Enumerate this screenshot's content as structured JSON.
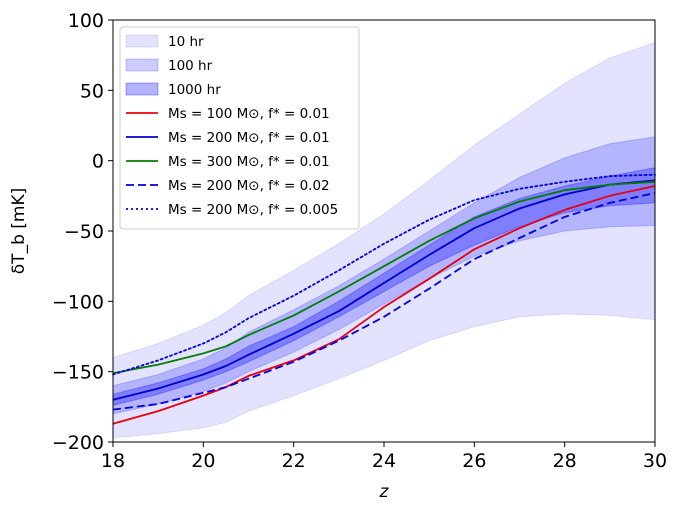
{
  "chart_data": {
    "type": "line",
    "title": "",
    "xlabel": "z",
    "ylabel": "δT_b [mK]",
    "xlim": [
      18,
      30
    ],
    "ylim": [
      -200,
      100
    ],
    "xticks": [
      18,
      20,
      22,
      24,
      26,
      28,
      30
    ],
    "xtick_labels": [
      "18",
      "20",
      "22",
      "24",
      "26",
      "28",
      "30"
    ],
    "yticks": [
      -200,
      -150,
      -100,
      -50,
      0,
      50,
      100
    ],
    "ytick_labels": [
      "−200",
      "−150",
      "−100",
      "−50",
      "0",
      "50",
      "100"
    ],
    "x": [
      18,
      19,
      20,
      20.5,
      21,
      22,
      23,
      24,
      25,
      26,
      27,
      28,
      29,
      30
    ],
    "bands": [
      {
        "name": "10 hr",
        "color": "#0000ff",
        "opacity": 0.11,
        "lower": [
          -197,
          -194,
          -190,
          -186,
          -178,
          -167,
          -155,
          -142,
          -128,
          -118,
          -111,
          -109,
          -110,
          -113
        ],
        "upper": [
          -140,
          -130,
          -117,
          -108,
          -96,
          -78,
          -59,
          -38,
          -14,
          11,
          33,
          55,
          73,
          84
        ]
      },
      {
        "name": "100 hr",
        "color": "#0000ff",
        "opacity": 0.2,
        "lower": [
          -180,
          -173,
          -164,
          -158,
          -150,
          -136,
          -120,
          -102,
          -84,
          -68,
          -57,
          -50,
          -47,
          -46
        ],
        "upper": [
          -160,
          -152,
          -141,
          -133,
          -122,
          -106,
          -89,
          -70,
          -50,
          -30,
          -12,
          2,
          12,
          17
        ]
      },
      {
        "name": "1000 hr",
        "color": "#0000ff",
        "opacity": 0.3,
        "lower": [
          -174,
          -166,
          -156,
          -150,
          -143,
          -128,
          -111,
          -93,
          -75,
          -60,
          -47,
          -37,
          -32,
          -30
        ],
        "upper": [
          -166,
          -158,
          -148,
          -141,
          -132,
          -118,
          -100,
          -80,
          -60,
          -40,
          -27,
          -18,
          -11,
          -5
        ]
      }
    ],
    "series": [
      {
        "name": "M_s = 100 M⊙, f* = 0.01",
        "color": "#e8000b",
        "dash": "solid",
        "values": [
          -187,
          -178,
          -167,
          -161,
          -153,
          -142,
          -127,
          -104,
          -84,
          -63,
          -48,
          -35,
          -25,
          -18
        ]
      },
      {
        "name": "M_s = 200 M⊙, f* = 0.01",
        "color": "#0000cc",
        "dash": "solid",
        "values": [
          -170,
          -162,
          -152,
          -146,
          -138,
          -123,
          -107,
          -87,
          -67,
          -48,
          -34,
          -24,
          -17,
          -14
        ]
      },
      {
        "name": "M_s = 300 M⊙, f* = 0.01",
        "color": "#007f00",
        "dash": "solid",
        "values": [
          -151,
          -145,
          -137,
          -132,
          -124,
          -110,
          -93,
          -75,
          -57,
          -41,
          -29,
          -21,
          -17,
          -15
        ]
      },
      {
        "name": "M_s = 200 M⊙, f* = 0.02",
        "color": "#0000e0",
        "dash": "dashed",
        "values": [
          -177,
          -173,
          -165,
          -161,
          -155,
          -143,
          -128,
          -111,
          -91,
          -70,
          -55,
          -40,
          -30,
          -23
        ]
      },
      {
        "name": "M_s = 200 M⊙, f* = 0.005",
        "color": "#0000e0",
        "dash": "dotted",
        "values": [
          -152,
          -142,
          -130,
          -122,
          -112,
          -96,
          -78,
          -59,
          -42,
          -28,
          -20,
          -15,
          -11,
          -10
        ]
      }
    ],
    "legend": {
      "placement": "top-left",
      "entries": [
        {
          "kind": "band",
          "ref": 0,
          "label": "10 hr"
        },
        {
          "kind": "band",
          "ref": 1,
          "label": "100 hr"
        },
        {
          "kind": "band",
          "ref": 2,
          "label": "1000 hr"
        },
        {
          "kind": "line",
          "ref": 0,
          "label": "Ms = 100 M⊙, f* = 0.01"
        },
        {
          "kind": "line",
          "ref": 1,
          "label": "Ms = 200 M⊙, f* = 0.01"
        },
        {
          "kind": "line",
          "ref": 2,
          "label": "Ms = 300 M⊙, f* = 0.01"
        },
        {
          "kind": "line",
          "ref": 3,
          "label": "Ms = 200 M⊙, f* = 0.02"
        },
        {
          "kind": "line",
          "ref": 4,
          "label": "Ms = 200 M⊙, f* = 0.005"
        }
      ]
    }
  }
}
